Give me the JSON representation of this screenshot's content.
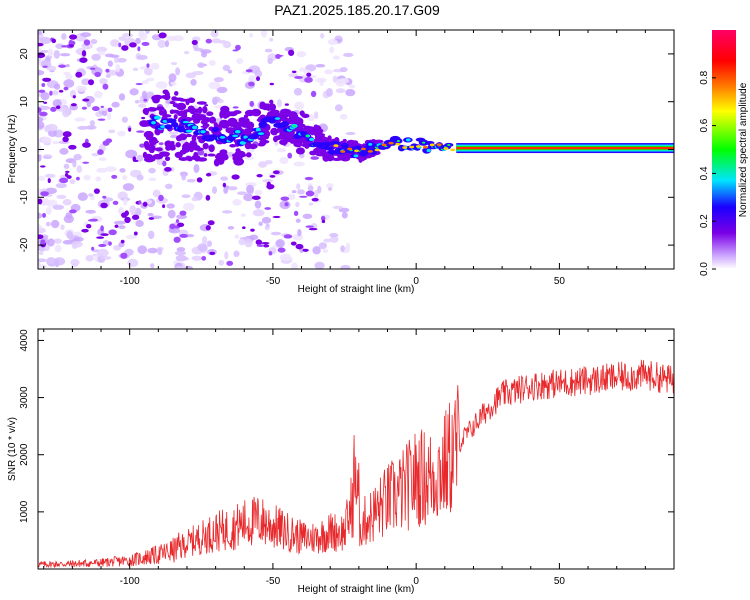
{
  "title": "PAZ1.2025.185.20.17.G09",
  "chart_data": [
    {
      "type": "heatmap",
      "xlabel": "Height of straight line (km)",
      "ylabel": "Frequency (Hz)",
      "xlim": [
        -132,
        90
      ],
      "ylim": [
        -25,
        25
      ],
      "xticks": [
        -100,
        -50,
        0,
        50
      ],
      "xtick_labels": [
        "-100",
        "-50",
        "0",
        "50"
      ],
      "yticks": [
        -20,
        -10,
        0,
        10,
        20
      ],
      "ytick_labels": [
        "-20",
        "-10",
        "0",
        "10",
        "20"
      ],
      "colorbar": {
        "label": "Normalized spectral amplitude",
        "range": [
          0,
          1
        ],
        "ticks": [
          0.0,
          0.2,
          0.4,
          0.6,
          0.8
        ],
        "tick_labels": [
          "0.0",
          "0.2",
          "0.4",
          "0.6",
          "0.8"
        ],
        "colormap": [
          "#e6d2ff",
          "#7b00e6",
          "#1a00ff",
          "#00e5ff",
          "#00ff00",
          "#ffff00",
          "#ff8000",
          "#ff0000",
          "#ff0066"
        ]
      },
      "ridge": [
        {
          "x": -90,
          "f": 5.5
        },
        {
          "x": -80,
          "f": 4.5
        },
        {
          "x": -70,
          "f": 3
        },
        {
          "x": -60,
          "f": 2.5
        },
        {
          "x": -50,
          "f": 6
        },
        {
          "x": -40,
          "f": 3
        },
        {
          "x": -30,
          "f": 0.5
        },
        {
          "x": -20,
          "f": -0.5
        },
        {
          "x": -10,
          "f": 1
        },
        {
          "x": 0,
          "f": 1
        },
        {
          "x": 15,
          "f": 0.3
        },
        {
          "x": 90,
          "f": 0.3
        }
      ]
    },
    {
      "type": "line",
      "xlabel": "Height of straight line (km)",
      "ylabel": "SNR (10 * v/v)",
      "xlim": [
        -132,
        90
      ],
      "ylim": [
        0,
        4200
      ],
      "xticks": [
        -100,
        -50,
        0,
        50
      ],
      "xtick_labels": [
        "-100",
        "-50",
        "0",
        "50"
      ],
      "yticks": [
        1000,
        2000,
        3000,
        4000
      ],
      "ytick_labels": [
        "1000",
        "2000",
        "3000",
        "4000"
      ],
      "color": "#e8282b",
      "series": [
        {
          "x": [
            -132,
            -120,
            -110,
            -100,
            -90,
            -85,
            -80,
            -75,
            -70,
            -65,
            -60,
            -55,
            -50,
            -45,
            -40,
            -35,
            -30,
            -25,
            -22,
            -20,
            -15,
            -10,
            -5,
            0,
            5,
            10,
            15,
            20,
            25,
            30,
            40,
            50,
            60,
            70,
            80,
            90
          ],
          "y": [
            80,
            90,
            110,
            150,
            250,
            320,
            450,
            550,
            650,
            700,
            800,
            850,
            750,
            650,
            550,
            550,
            650,
            650,
            1200,
            750,
            950,
            1200,
            1350,
            1600,
            1600,
            1800,
            2200,
            2500,
            2800,
            3050,
            3200,
            3250,
            3300,
            3350,
            3400,
            3300
          ]
        }
      ]
    }
  ]
}
